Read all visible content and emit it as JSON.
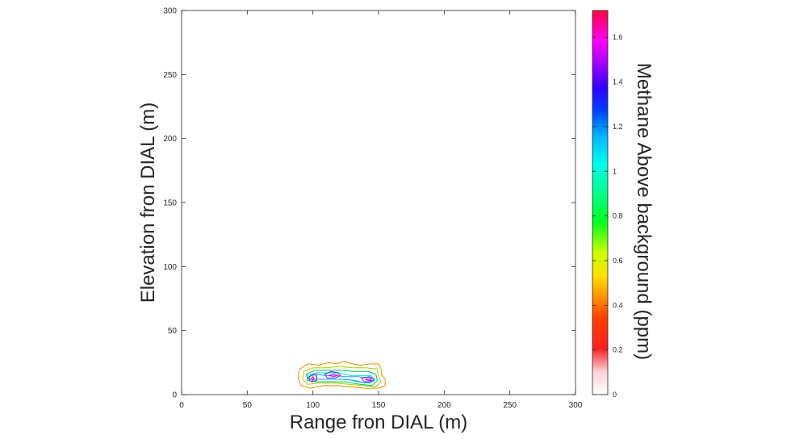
{
  "chart_data": {
    "type": "contour",
    "xlabel": "Range fron DIAL (m)",
    "ylabel": "Elevation fron DIAL (m)",
    "colorbar_label": "Methane Above background (ppm)",
    "xlim": [
      0,
      300
    ],
    "ylim": [
      0,
      300
    ],
    "x_ticks": [
      0,
      50,
      100,
      150,
      200,
      250,
      300
    ],
    "y_ticks": [
      0,
      50,
      100,
      150,
      200,
      250,
      300
    ],
    "x_tick_labels": [
      "0",
      "50",
      "100",
      "150",
      "200",
      "250",
      "300"
    ],
    "y_tick_labels": [
      "0",
      "50",
      "100",
      "150",
      "200",
      "250",
      "300"
    ],
    "colorbar": {
      "range": [
        0,
        1.72
      ],
      "ticks": [
        0,
        0.2,
        0.4,
        0.6,
        0.8,
        1,
        1.2,
        1.4,
        1.6
      ],
      "tick_labels": [
        "0",
        "0.2",
        "0.4",
        "0.6",
        "0.8",
        "1",
        "1.2",
        "1.4",
        "1.6"
      ]
    },
    "contours": [
      {
        "level": 0.35,
        "color": "#f08a00",
        "points": [
          [
            90,
            20
          ],
          [
            96,
            24
          ],
          [
            104,
            23
          ],
          [
            112,
            25
          ],
          [
            118,
            24
          ],
          [
            124,
            26
          ],
          [
            130,
            24
          ],
          [
            136,
            23
          ],
          [
            144,
            24
          ],
          [
            150,
            24
          ],
          [
            152,
            20
          ],
          [
            152,
            16
          ],
          [
            155,
            12
          ],
          [
            155,
            7
          ],
          [
            150,
            5
          ],
          [
            140,
            5
          ],
          [
            130,
            6
          ],
          [
            120,
            7
          ],
          [
            108,
            7
          ],
          [
            98,
            5
          ],
          [
            91,
            7
          ],
          [
            89,
            12
          ],
          [
            89,
            17
          ]
        ]
      },
      {
        "level": 0.5,
        "color": "#a8d400",
        "points": [
          [
            93,
            18
          ],
          [
            100,
            21
          ],
          [
            110,
            21
          ],
          [
            120,
            22
          ],
          [
            130,
            21
          ],
          [
            140,
            21
          ],
          [
            149,
            20
          ],
          [
            150,
            15
          ],
          [
            152,
            10
          ],
          [
            148,
            6
          ],
          [
            138,
            7
          ],
          [
            128,
            8
          ],
          [
            116,
            9
          ],
          [
            104,
            9
          ],
          [
            96,
            8
          ],
          [
            92,
            12
          ]
        ]
      },
      {
        "level": 0.7,
        "color": "#00c850",
        "points": [
          [
            95,
            16
          ],
          [
            102,
            19
          ],
          [
            112,
            19
          ],
          [
            122,
            19
          ],
          [
            132,
            18
          ],
          [
            142,
            18
          ],
          [
            148,
            16
          ],
          [
            149,
            11
          ],
          [
            145,
            7
          ],
          [
            136,
            8
          ],
          [
            124,
            10
          ],
          [
            112,
            10
          ],
          [
            102,
            10
          ],
          [
            96,
            11
          ]
        ]
      },
      {
        "level": 1.0,
        "color": "#00d8d0",
        "points": [
          [
            96,
            15
          ],
          [
            103,
            17
          ],
          [
            111,
            17
          ],
          [
            120,
            17
          ],
          [
            128,
            15
          ],
          [
            136,
            15
          ],
          [
            144,
            15
          ],
          [
            147,
            11
          ],
          [
            143,
            9
          ],
          [
            134,
            10
          ],
          [
            126,
            12
          ],
          [
            116,
            12
          ],
          [
            106,
            12
          ],
          [
            98,
            12
          ]
        ]
      },
      {
        "level": 1.15,
        "color": "#1ea0ff",
        "points": [
          [
            97,
            14
          ],
          [
            103,
            16
          ],
          [
            109,
            15
          ],
          [
            117,
            15
          ],
          [
            124,
            14
          ],
          [
            134,
            14
          ],
          [
            144,
            13
          ],
          [
            145,
            10
          ],
          [
            140,
            9
          ],
          [
            132,
            11
          ],
          [
            122,
            12
          ],
          [
            112,
            12
          ],
          [
            102,
            12
          ],
          [
            98,
            12
          ]
        ]
      },
      {
        "level": 1.45,
        "color": "#4030ff",
        "points": [
          [
            109,
            16
          ],
          [
            114,
            18
          ],
          [
            119,
            17
          ],
          [
            121,
            15
          ],
          [
            117,
            13
          ],
          [
            111,
            13
          ]
        ]
      },
      {
        "level": 1.45,
        "color": "#4030ff",
        "points": [
          [
            137,
            13
          ],
          [
            143,
            14
          ],
          [
            147,
            12
          ],
          [
            144,
            10
          ],
          [
            139,
            10
          ]
        ]
      },
      {
        "level": 1.45,
        "color": "#7020ff",
        "points": [
          [
            96,
            13
          ],
          [
            100,
            16
          ],
          [
            103,
            15
          ],
          [
            103,
            11
          ],
          [
            99,
            10
          ]
        ]
      },
      {
        "level": 1.6,
        "color": "#ff00d0",
        "points": [
          [
            112,
            15
          ],
          [
            116,
            16
          ],
          [
            119,
            15
          ],
          [
            116,
            14
          ]
        ]
      },
      {
        "level": 1.6,
        "color": "#ff00d0",
        "points": [
          [
            140,
            12
          ],
          [
            144,
            12
          ],
          [
            145,
            11
          ],
          [
            142,
            11
          ]
        ]
      },
      {
        "level": 1.7,
        "color": "#d0005a",
        "points": [
          [
            99,
            13
          ],
          [
            100,
            14
          ],
          [
            101,
            12
          ],
          [
            100,
            11
          ]
        ]
      }
    ]
  }
}
